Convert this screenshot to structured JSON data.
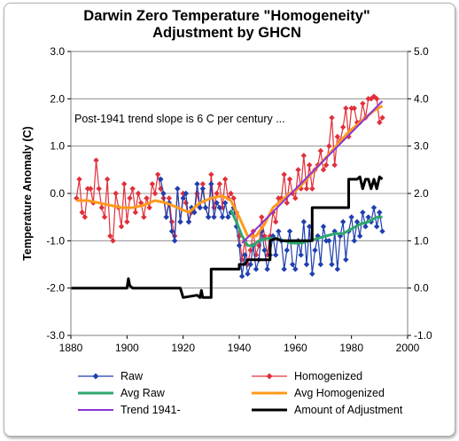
{
  "chart_data": {
    "type": "line",
    "title": "Darwin Zero Temperature \"Homogeneity\"",
    "subtitle": "Adjustment by GHCN",
    "ylabel": "Temperature Anomaly (C)",
    "xlim": [
      1880,
      2000
    ],
    "ylim": [
      -3.0,
      3.0
    ],
    "y2lim": [
      -1.0,
      5.0
    ],
    "x_ticks": [
      "1880",
      "1900",
      "1920",
      "1940",
      "1960",
      "1980",
      "2000"
    ],
    "y_ticks": [
      "-3.0",
      "-2.0",
      "-1.0",
      "0.0",
      "1.0",
      "2.0",
      "3.0"
    ],
    "y2_ticks": [
      "-1.0",
      "0.0",
      "1.0",
      "2.0",
      "3.0",
      "4.0",
      "5.0"
    ],
    "grid": "horizontal",
    "legend_position": "bottom",
    "annotation": "Post-1941 trend slope is 6 C per century ...",
    "series": [
      {
        "name": "Raw",
        "axis": "left",
        "color": "#1f3fb0",
        "marker": "diamond",
        "x": [
          1912,
          1913,
          1914,
          1915,
          1916,
          1917,
          1918,
          1919,
          1920,
          1921,
          1922,
          1923,
          1924,
          1925,
          1926,
          1927,
          1928,
          1929,
          1930,
          1931,
          1932,
          1933,
          1934,
          1935,
          1936,
          1937,
          1938,
          1939,
          1940,
          1941,
          1942,
          1943,
          1944,
          1945,
          1946,
          1947,
          1948,
          1949,
          1950,
          1951,
          1952,
          1953,
          1954,
          1955,
          1956,
          1957,
          1958,
          1959,
          1960,
          1961,
          1962,
          1963,
          1964,
          1965,
          1966,
          1967,
          1968,
          1969,
          1970,
          1971,
          1972,
          1973,
          1974,
          1975,
          1976,
          1977,
          1978,
          1979,
          1980,
          1981,
          1982,
          1983,
          1984,
          1985,
          1986,
          1987,
          1988,
          1989,
          1990,
          1991
        ],
        "y": [
          0.3,
          0.0,
          -0.5,
          -0.2,
          -0.8,
          -1.0,
          0.1,
          -0.6,
          -0.1,
          0.0,
          -0.6,
          -0.3,
          -0.4,
          0.2,
          -0.3,
          0.1,
          -0.3,
          -0.5,
          0.2,
          -0.5,
          -0.2,
          -0.3,
          -0.5,
          -0.2,
          -0.5,
          -0.4,
          -0.3,
          -0.7,
          -1.1,
          -1.75,
          -1.3,
          -1.7,
          -1.5,
          -1.1,
          -1.6,
          -1.4,
          -0.8,
          -1.2,
          -1.6,
          -1.3,
          -0.9,
          -1.3,
          -0.8,
          -1.0,
          -1.6,
          -1.2,
          -0.8,
          -1.5,
          -1.6,
          -1.0,
          -1.3,
          -0.6,
          -1.5,
          -0.7,
          -1.7,
          -1.2,
          -0.9,
          -1.5,
          -0.7,
          -1.0,
          -1.0,
          -1.5,
          -0.8,
          -1.6,
          -0.9,
          -0.6,
          -1.4,
          -0.8,
          -0.5,
          -1.0,
          -0.6,
          -0.9,
          -0.4,
          -0.7,
          -0.5,
          -0.6,
          -0.3,
          -0.7,
          -0.4,
          -0.8
        ]
      },
      {
        "name": "Homogenized",
        "axis": "left",
        "color": "#e0303a",
        "marker": "diamond",
        "x": [
          1882,
          1883,
          1884,
          1885,
          1886,
          1887,
          1888,
          1889,
          1890,
          1891,
          1892,
          1893,
          1894,
          1895,
          1896,
          1897,
          1898,
          1899,
          1900,
          1901,
          1902,
          1903,
          1904,
          1905,
          1906,
          1907,
          1908,
          1909,
          1910,
          1911,
          1912,
          1913,
          1914,
          1915,
          1916,
          1917,
          1918,
          1919,
          1920,
          1921,
          1922,
          1923,
          1924,
          1925,
          1926,
          1927,
          1928,
          1929,
          1930,
          1931,
          1932,
          1933,
          1934,
          1935,
          1936,
          1937,
          1938,
          1939,
          1940,
          1941,
          1942,
          1943,
          1944,
          1945,
          1946,
          1947,
          1948,
          1949,
          1950,
          1951,
          1952,
          1953,
          1954,
          1955,
          1956,
          1957,
          1958,
          1959,
          1960,
          1961,
          1962,
          1963,
          1964,
          1965,
          1966,
          1967,
          1968,
          1969,
          1970,
          1971,
          1972,
          1973,
          1974,
          1975,
          1976,
          1977,
          1978,
          1979,
          1980,
          1981,
          1982,
          1983,
          1984,
          1985,
          1986,
          1987,
          1988,
          1989,
          1990,
          1991
        ],
        "y": [
          -0.1,
          0.3,
          -0.4,
          -0.5,
          0.1,
          0.1,
          -0.2,
          0.7,
          0.1,
          -0.3,
          -0.5,
          0.3,
          -0.9,
          -1.0,
          0.0,
          -0.3,
          -0.7,
          0.2,
          -0.6,
          -0.1,
          0.1,
          -0.4,
          0.0,
          -0.2,
          -0.5,
          -0.1,
          -0.3,
          0.2,
          0.0,
          0.4,
          0.1,
          -0.1,
          -0.5,
          -0.1,
          -0.6,
          -0.9,
          0.1,
          -0.6,
          0.0,
          -0.2,
          -0.6,
          -0.4,
          -0.4,
          0.0,
          -0.3,
          0.2,
          -0.3,
          -0.5,
          0.4,
          -0.3,
          0.0,
          0.2,
          -0.3,
          0.3,
          -0.1,
          0.0,
          -0.1,
          -0.4,
          -0.9,
          -1.4,
          -1.0,
          -1.5,
          -1.2,
          -0.8,
          -1.3,
          -1.1,
          -0.5,
          -0.9,
          -1.3,
          -0.9,
          -0.4,
          -0.6,
          -0.1,
          -0.1,
          0.4,
          -0.2,
          0.3,
          0.0,
          -0.1,
          0.5,
          0.1,
          0.8,
          0.1,
          0.6,
          0.1,
          0.5,
          0.6,
          0.9,
          0.5,
          0.6,
          1.0,
          1.6,
          0.6,
          1.2,
          1.1,
          1.4,
          1.8,
          1.2,
          1.8,
          1.8,
          1.5,
          1.5,
          1.9,
          1.6,
          2.0,
          2.0,
          2.05,
          2.0,
          1.5,
          1.6
        ]
      },
      {
        "name": "Avg Raw",
        "axis": "left",
        "color": "#2ea86b",
        "x": [
          1937,
          1939,
          1941,
          1943,
          1945,
          1947,
          1950,
          1953,
          1956,
          1959,
          1962,
          1965,
          1968,
          1971,
          1974,
          1977,
          1980,
          1983,
          1986,
          1989,
          1991
        ],
        "y": [
          -0.35,
          -0.6,
          -0.9,
          -1.1,
          -1.1,
          -1.0,
          -0.95,
          -0.95,
          -1.0,
          -1.05,
          -1.05,
          -1.0,
          -0.95,
          -0.9,
          -0.85,
          -0.85,
          -0.75,
          -0.65,
          -0.6,
          -0.5,
          -0.5
        ]
      },
      {
        "name": "Avg Homogenized",
        "axis": "left",
        "color": "#ff9a1a",
        "x": [
          1882,
          1886,
          1890,
          1894,
          1898,
          1902,
          1906,
          1910,
          1914,
          1918,
          1922,
          1926,
          1930,
          1934,
          1937,
          1940,
          1943,
          1946,
          1949,
          1952,
          1955,
          1958,
          1961,
          1964,
          1967,
          1970,
          1973,
          1976,
          1979,
          1982,
          1985,
          1988,
          1991
        ],
        "y": [
          -0.15,
          -0.15,
          -0.2,
          -0.25,
          -0.3,
          -0.3,
          -0.25,
          -0.15,
          -0.2,
          -0.3,
          -0.4,
          -0.2,
          -0.1,
          -0.05,
          -0.15,
          -0.5,
          -0.9,
          -0.9,
          -0.65,
          -0.3,
          -0.15,
          0.0,
          0.1,
          0.3,
          0.5,
          0.7,
          0.9,
          1.1,
          1.3,
          1.45,
          1.6,
          1.75,
          1.85
        ]
      },
      {
        "name": "Trend 1941-",
        "axis": "left",
        "color": "#8a35d8",
        "x": [
          1941,
          1991
        ],
        "y": [
          -1.05,
          1.95
        ]
      },
      {
        "name": "Amount of Adjustment",
        "axis": "right",
        "color": "#000000",
        "x": [
          1880,
          1890,
          1899,
          1900,
          1900.5,
          1901,
          1902,
          1919,
          1920,
          1920,
          1925,
          1926,
          1926.5,
          1927,
          1928,
          1929,
          1930,
          1930,
          1940,
          1940,
          1942,
          1943,
          1950,
          1951,
          1951,
          1953,
          1955,
          1958,
          1958,
          1965,
          1966,
          1966,
          1978,
          1979,
          1979,
          1982,
          1983,
          1984,
          1985,
          1986,
          1987,
          1988,
          1989,
          1990,
          1991
        ],
        "y": [
          0.0,
          0.0,
          0.0,
          0.0,
          0.2,
          0.05,
          0.0,
          0.0,
          -0.2,
          -0.2,
          -0.15,
          -0.2,
          -0.05,
          -0.2,
          -0.2,
          -0.2,
          -0.2,
          0.4,
          0.4,
          0.5,
          0.5,
          0.6,
          0.6,
          0.6,
          1.0,
          1.05,
          1.0,
          1.0,
          1.0,
          1.0,
          1.0,
          1.7,
          1.7,
          1.7,
          2.3,
          2.3,
          2.35,
          2.1,
          2.3,
          2.3,
          2.1,
          2.3,
          2.1,
          2.35,
          2.3
        ]
      }
    ]
  }
}
